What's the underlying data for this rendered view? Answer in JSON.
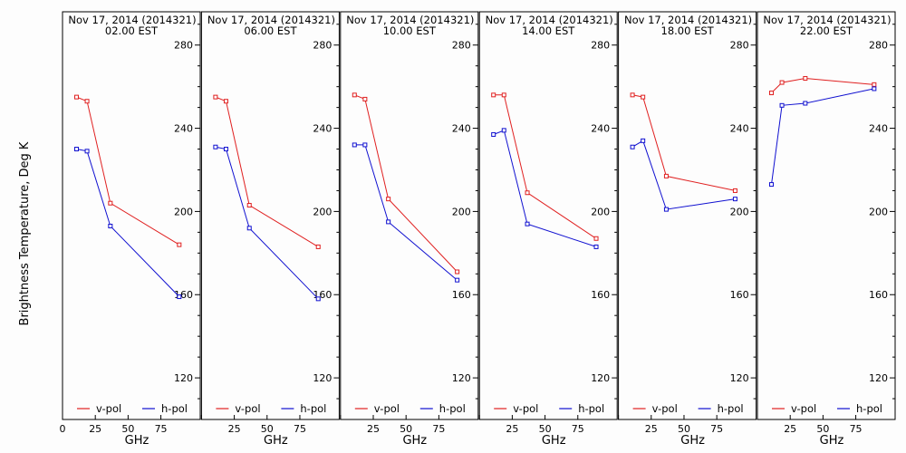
{
  "chart_data": {
    "type": "line",
    "ylabel": "Brightness Temperature, Deg K",
    "xlabel": "GHz",
    "ylim": [
      100,
      296
    ],
    "xlim": [
      0,
      105
    ],
    "yticks": [
      120,
      160,
      200,
      240,
      280
    ],
    "xticks": [
      0,
      25,
      50,
      75
    ],
    "legend_placement": "bottom",
    "series_names": [
      "v-pol",
      "h-pol"
    ],
    "series_colors": [
      "#e02020",
      "#1010d0"
    ],
    "panels": [
      {
        "title": "Nov 17, 2014 (2014321)",
        "subtitle": "02.00 EST",
        "series": [
          {
            "name": "v-pol",
            "x": [
              10.7,
              18.7,
              36.5,
              89.0
            ],
            "y": [
              255,
              253,
              204,
              184
            ]
          },
          {
            "name": "h-pol",
            "x": [
              10.7,
              18.7,
              36.5,
              89.0
            ],
            "y": [
              230,
              229,
              193,
              159
            ]
          }
        ]
      },
      {
        "title": "Nov 17, 2014 (2014321)",
        "subtitle": "06.00 EST",
        "series": [
          {
            "name": "v-pol",
            "x": [
              10.7,
              18.7,
              36.5,
              89.0
            ],
            "y": [
              255,
              253,
              203,
              183
            ]
          },
          {
            "name": "h-pol",
            "x": [
              10.7,
              18.7,
              36.5,
              89.0
            ],
            "y": [
              231,
              230,
              192,
              158
            ]
          }
        ]
      },
      {
        "title": "Nov 17, 2014 (2014321)",
        "subtitle": "10.00 EST",
        "series": [
          {
            "name": "v-pol",
            "x": [
              10.7,
              18.7,
              36.5,
              89.0
            ],
            "y": [
              256,
              254,
              206,
              171
            ]
          },
          {
            "name": "h-pol",
            "x": [
              10.7,
              18.7,
              36.5,
              89.0
            ],
            "y": [
              232,
              232,
              195,
              167
            ]
          }
        ]
      },
      {
        "title": "Nov 17, 2014 (2014321)",
        "subtitle": "14.00 EST",
        "series": [
          {
            "name": "v-pol",
            "x": [
              10.7,
              18.7,
              36.5,
              89.0
            ],
            "y": [
              256,
              256,
              209,
              187
            ]
          },
          {
            "name": "h-pol",
            "x": [
              10.7,
              18.7,
              36.5,
              89.0
            ],
            "y": [
              237,
              239,
              194,
              183
            ]
          }
        ]
      },
      {
        "title": "Nov 17, 2014 (2014321)",
        "subtitle": "18.00 EST",
        "series": [
          {
            "name": "v-pol",
            "x": [
              10.7,
              18.7,
              36.5,
              89.0
            ],
            "y": [
              256,
              255,
              217,
              210
            ]
          },
          {
            "name": "h-pol",
            "x": [
              10.7,
              18.7,
              36.5,
              89.0
            ],
            "y": [
              231,
              234,
              201,
              206
            ]
          }
        ]
      },
      {
        "title": "Nov 17, 2014 (2014321)",
        "subtitle": "22.00 EST",
        "series": [
          {
            "name": "v-pol",
            "x": [
              10.7,
              18.7,
              36.5,
              89.0
            ],
            "y": [
              257,
              262,
              264,
              261
            ]
          },
          {
            "name": "h-pol",
            "x": [
              10.7,
              18.7,
              36.5,
              89.0
            ],
            "y": [
              213,
              251,
              252,
              259
            ]
          }
        ]
      }
    ]
  }
}
